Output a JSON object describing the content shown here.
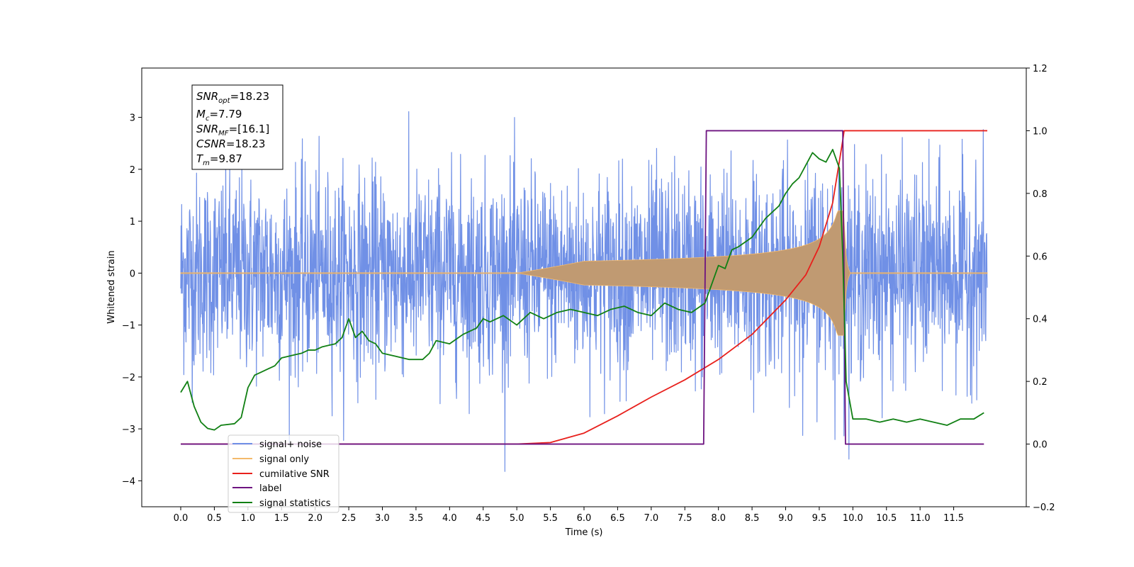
{
  "chart_data": {
    "type": "line",
    "title": "",
    "xlabel": "Time (s)",
    "ylabel": "Whitened strain",
    "xlim": [
      -0.58,
      12.58
    ],
    "ylim": [
      -4.5,
      3.95
    ],
    "y2lim": [
      -0.2,
      1.2
    ],
    "xticks": [
      0.0,
      0.5,
      1.0,
      1.5,
      2.0,
      2.5,
      3.0,
      3.5,
      4.0,
      4.5,
      5.0,
      5.5,
      6.0,
      6.5,
      7.0,
      7.5,
      8.0,
      8.5,
      9.0,
      9.5,
      10.0,
      10.5,
      11.0,
      11.5
    ],
    "xtick_labels": [
      "0.0",
      "0.5",
      "1.0",
      "1.5",
      "2.0",
      "2.5",
      "3.0",
      "3.5",
      "4.0",
      "4.5",
      "5.0",
      "5.5",
      "6.0",
      "6.5",
      "7.0",
      "7.5",
      "8.0",
      "8.5",
      "9.0",
      "9.5",
      "10.0",
      "10.5",
      "11.0",
      "11.5"
    ],
    "yticks": [
      -4,
      -3,
      -2,
      -1,
      0,
      1,
      2,
      3
    ],
    "ytick_labels": [
      "−4",
      "−3",
      "−2",
      "−1",
      "0",
      "1",
      "2",
      "3"
    ],
    "y2ticks": [
      -0.2,
      0.0,
      0.2,
      0.4,
      0.6,
      0.8,
      1.0,
      1.2
    ],
    "y2tick_labels": [
      "−0.2",
      "0.0",
      "0.2",
      "0.4",
      "0.6",
      "0.8",
      "1.0",
      "1.2"
    ],
    "grid": false,
    "legend_position": "lower-left",
    "info_box": {
      "lines": [
        {
          "symbol": "SNR",
          "subscript": "opt",
          "value": "=18.23"
        },
        {
          "symbol": "M",
          "subscript": "c",
          "value": "=7.79"
        },
        {
          "symbol": "SNR",
          "subscript": "MF",
          "value": "=[16.1]"
        },
        {
          "symbol": "CSNR",
          "subscript": "",
          "value": "=18.23"
        },
        {
          "symbol": "T",
          "subscript": "m",
          "value": "=9.87"
        }
      ]
    },
    "series": [
      {
        "name": "signal+ noise",
        "axis": "left",
        "color": "#7090e6",
        "description_envelope": {
          "x_start": 0.0,
          "x_end": 12.0,
          "typical_amplitude": 1.3,
          "max": 3.6,
          "min": -4.1
        }
      },
      {
        "name": "signal only",
        "axis": "left",
        "color": "#f4b96b",
        "chirp": {
          "x_start": 0.0,
          "merger": 9.87,
          "x_end": 12.0,
          "amplitude_at_6": 0.05,
          "amplitude_at_8": 0.3,
          "amplitude_at_9": 0.45,
          "peak_amplitude": 1.2
        }
      },
      {
        "name": "cumilative SNR",
        "axis": "right",
        "color": "#e8201c",
        "x": [
          0.0,
          4.0,
          5.0,
          5.5,
          6.0,
          6.5,
          7.0,
          7.5,
          8.0,
          8.5,
          9.0,
          9.3,
          9.5,
          9.7,
          9.85,
          9.87,
          12.0
        ],
        "values": [
          0.0,
          0.0,
          0.0,
          0.005,
          0.035,
          0.09,
          0.15,
          0.205,
          0.27,
          0.35,
          0.46,
          0.54,
          0.63,
          0.77,
          0.97,
          1.0,
          1.0
        ]
      },
      {
        "name": "label",
        "axis": "right",
        "color": "#6d1380",
        "x": [
          0.0,
          7.78,
          7.82,
          9.85,
          9.89,
          11.95
        ],
        "values": [
          0.0,
          0.0,
          1.0,
          1.0,
          0.0,
          0.0
        ]
      },
      {
        "name": "signal statistics",
        "axis": "right",
        "color": "#118014",
        "x": [
          0.0,
          0.1,
          0.2,
          0.3,
          0.4,
          0.5,
          0.6,
          0.8,
          0.9,
          1.0,
          1.1,
          1.2,
          1.3,
          1.4,
          1.5,
          1.6,
          1.7,
          1.8,
          1.9,
          2.0,
          2.1,
          2.2,
          2.3,
          2.4,
          2.5,
          2.6,
          2.7,
          2.8,
          2.9,
          3.0,
          3.2,
          3.4,
          3.6,
          3.7,
          3.8,
          4.0,
          4.2,
          4.4,
          4.5,
          4.6,
          4.8,
          5.0,
          5.2,
          5.4,
          5.6,
          5.8,
          6.0,
          6.2,
          6.4,
          6.6,
          6.8,
          7.0,
          7.2,
          7.4,
          7.6,
          7.8,
          8.0,
          8.1,
          8.2,
          8.3,
          8.5,
          8.7,
          8.9,
          9.0,
          9.1,
          9.2,
          9.3,
          9.4,
          9.5,
          9.6,
          9.7,
          9.8,
          9.85,
          9.9,
          10.0,
          10.2,
          10.4,
          10.6,
          10.8,
          11.0,
          11.2,
          11.4,
          11.6,
          11.8,
          11.95
        ],
        "values": [
          0.165,
          0.2,
          0.12,
          0.07,
          0.05,
          0.045,
          0.06,
          0.065,
          0.085,
          0.18,
          0.22,
          0.23,
          0.24,
          0.25,
          0.275,
          0.28,
          0.285,
          0.29,
          0.3,
          0.3,
          0.31,
          0.315,
          0.32,
          0.34,
          0.4,
          0.34,
          0.36,
          0.33,
          0.32,
          0.29,
          0.28,
          0.27,
          0.27,
          0.29,
          0.33,
          0.32,
          0.35,
          0.37,
          0.4,
          0.39,
          0.41,
          0.38,
          0.42,
          0.4,
          0.42,
          0.43,
          0.42,
          0.41,
          0.43,
          0.44,
          0.42,
          0.41,
          0.45,
          0.43,
          0.42,
          0.45,
          0.57,
          0.56,
          0.62,
          0.63,
          0.66,
          0.72,
          0.76,
          0.8,
          0.83,
          0.85,
          0.89,
          0.93,
          0.91,
          0.9,
          0.94,
          0.88,
          0.6,
          0.2,
          0.08,
          0.08,
          0.07,
          0.08,
          0.07,
          0.08,
          0.07,
          0.06,
          0.08,
          0.08,
          0.1
        ]
      }
    ]
  }
}
